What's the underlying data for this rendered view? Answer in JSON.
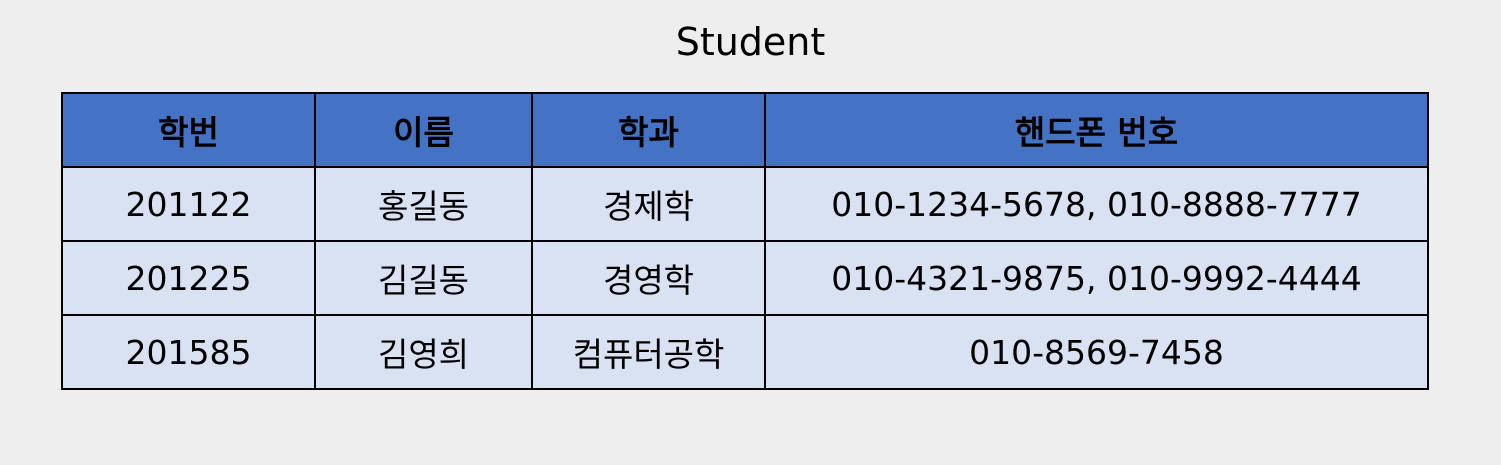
{
  "title": "Student",
  "table": {
    "headers": [
      "학번",
      "이름",
      "학과",
      "핸드폰 번호"
    ],
    "rows": [
      [
        "201122",
        "홍길동",
        "경제학",
        "010-1234-5678,  010-8888-7777"
      ],
      [
        "201225",
        "김길동",
        "경영학",
        "010-4321-9875,  010-9992-4444"
      ],
      [
        "201585",
        "김영희",
        "컴퓨터공학",
        "010-8569-7458"
      ]
    ]
  },
  "colors": {
    "header_bg": "#4472c4",
    "row_bg": "#d9e2f3",
    "border": "#000000",
    "page_bg": "#eeeeee"
  }
}
